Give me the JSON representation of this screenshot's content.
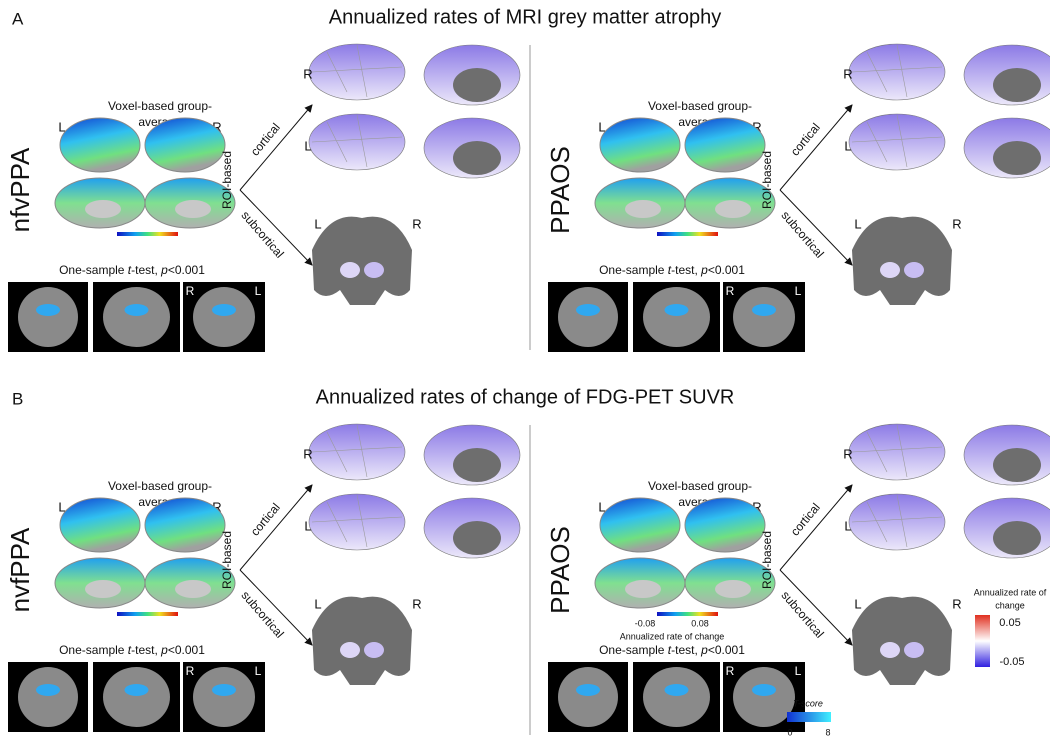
{
  "panels": [
    {
      "label": "A",
      "title": "Annualized rates of MRI grey matter atrophy",
      "groups": [
        {
          "name": "nfvPPA",
          "voxel_title": [
            "Voxel-based group-",
            "average"
          ],
          "voxel_sides": [
            "L",
            "R"
          ],
          "roi_label": "ROI-based",
          "branches": [
            "cortical",
            "subcortical"
          ],
          "cortical_sides": [
            "R",
            "L"
          ],
          "subcortical_sides": [
            "L",
            "R"
          ],
          "test": [
            "One-sample ",
            "t",
            "-test, ",
            "p",
            "<0.001"
          ],
          "axial_sides": [
            "R",
            "L"
          ]
        },
        {
          "name": "PPAOS",
          "voxel_title": [
            "Voxel-based group-",
            "average"
          ],
          "voxel_sides": [
            "L",
            "R"
          ],
          "roi_label": "ROI-based",
          "branches": [
            "cortical",
            "subcortical"
          ],
          "cortical_sides": [
            "R",
            "L"
          ],
          "subcortical_sides": [
            "L",
            "R"
          ],
          "test": [
            "One-sample ",
            "t",
            "-test, ",
            "p",
            "<0.001"
          ],
          "axial_sides": [
            "R",
            "L"
          ]
        }
      ]
    },
    {
      "label": "B",
      "title": "Annualized rates of change of FDG-PET SUVR",
      "groups": [
        {
          "name": "nvfPPA",
          "voxel_title": [
            "Voxel-based group-",
            "average"
          ],
          "voxel_sides": [
            "L",
            "R"
          ],
          "roi_label": "ROI-based",
          "branches": [
            "cortical",
            "subcortical"
          ],
          "cortical_sides": [
            "R",
            "L"
          ],
          "subcortical_sides": [
            "L",
            "R"
          ],
          "test": [
            "One-sample ",
            "t",
            "-test, ",
            "p",
            "<0.001"
          ],
          "axial_sides": [
            "R",
            "L"
          ]
        },
        {
          "name": "PPAOS",
          "voxel_title": [
            "Voxel-based group-",
            "average"
          ],
          "voxel_sides": [
            "L",
            "R"
          ],
          "roi_label": "ROI-based",
          "branches": [
            "cortical",
            "subcortical"
          ],
          "cortical_sides": [
            "R",
            "L"
          ],
          "subcortical_sides": [
            "L",
            "R"
          ],
          "test": [
            "One-sample ",
            "t",
            "-test, ",
            "p",
            "<0.001"
          ],
          "axial_sides": [
            "R",
            "L"
          ]
        }
      ]
    }
  ],
  "voxel_colorbar": {
    "min_label": "-0.08",
    "max_label": "0.08",
    "caption": "Annualized rate of change"
  },
  "roi_legend": {
    "title_lines": [
      "Annualized rate of",
      "change"
    ],
    "ticks": [
      "0.05",
      "-0.05"
    ]
  },
  "tscore_legend": {
    "title": "T-score",
    "ticks": [
      "0",
      "8"
    ]
  }
}
